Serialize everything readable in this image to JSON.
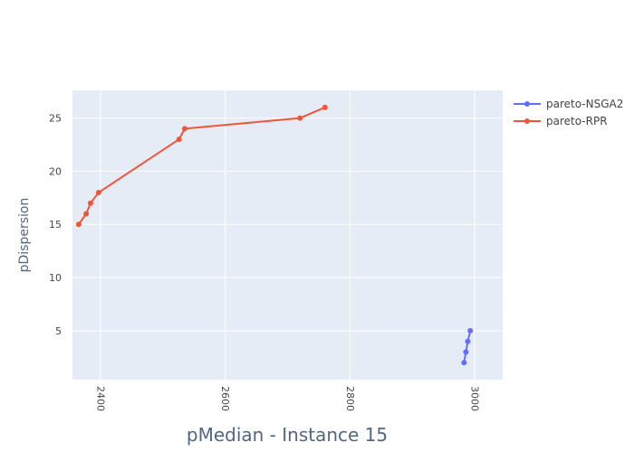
{
  "chart_data": {
    "type": "line",
    "xlabel": "pMedian - Instance 15",
    "ylabel": "pDispersion",
    "xlim": [
      2355,
      3045
    ],
    "ylim": [
      0.4,
      27.6
    ],
    "xticks": [
      2400,
      2600,
      2800,
      3000
    ],
    "yticks": [
      5,
      10,
      15,
      20,
      25
    ],
    "grid": true,
    "legend_position": "top-right",
    "series": [
      {
        "name": "pareto-NSGA2",
        "color": "#636efa",
        "x": [
          2983,
          2986,
          2989,
          2993
        ],
        "y": [
          2,
          3,
          4,
          5
        ]
      },
      {
        "name": "pareto-RPR",
        "color": "#ef553b",
        "x": [
          2365,
          2377,
          2384,
          2397,
          2526,
          2535,
          2720,
          2760
        ],
        "y": [
          15,
          16,
          17,
          18,
          23,
          24,
          25,
          26
        ]
      }
    ]
  }
}
